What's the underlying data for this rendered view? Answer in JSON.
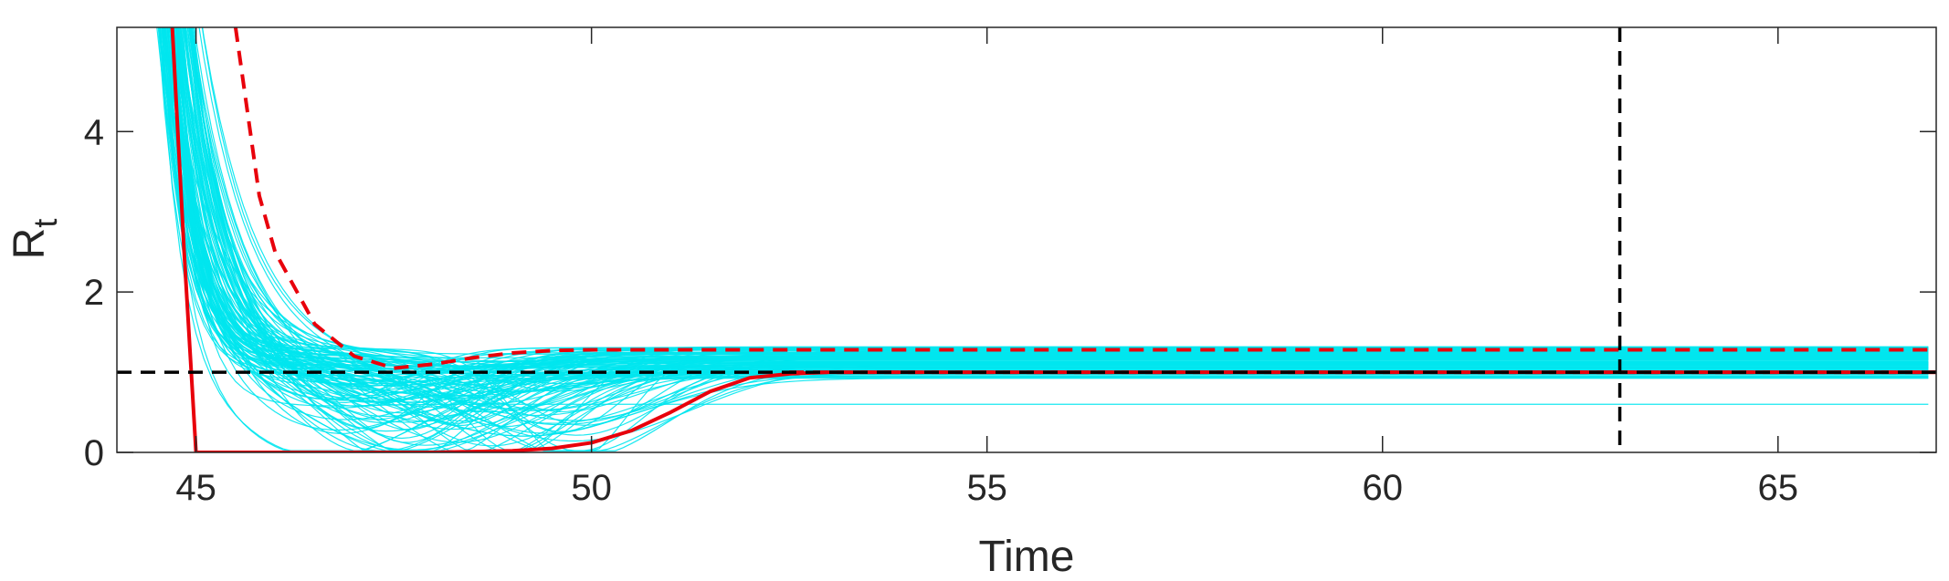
{
  "chart_data": {
    "type": "line",
    "xlabel": "Time",
    "ylabel_main": "R",
    "ylabel_sub": "t",
    "xlim": [
      44,
      67
    ],
    "ylim": [
      0,
      5.3
    ],
    "x_ticks": [
      45,
      50,
      55,
      60,
      65
    ],
    "y_ticks": [
      0,
      2,
      4
    ],
    "x_tick_labels": [
      "45",
      "50",
      "55",
      "60",
      "65"
    ],
    "y_tick_labels": [
      "0",
      "2",
      "4"
    ],
    "grid": false,
    "colors": {
      "ensemble": "#00e5ee",
      "red": "#e8000b",
      "reference": "#000000",
      "axes": "#262626"
    },
    "reference_lines": [
      {
        "orientation": "horizontal",
        "value": 1,
        "style": "dashed",
        "color": "#000000"
      },
      {
        "orientation": "vertical",
        "value": 63,
        "style": "dashed",
        "color": "#000000"
      }
    ],
    "ensemble_description": {
      "count": 120,
      "t_start": 44.5,
      "start_range": [
        5.3,
        12
      ],
      "final_range": [
        0.6,
        1.32
      ]
    },
    "series": [
      {
        "style": "solid",
        "color": "#e8000b",
        "x": [
          44.7,
          44.85,
          45.0,
          46.0,
          47.0,
          48.0,
          49.0,
          49.5,
          50.0,
          50.5,
          51.0,
          51.5,
          52.0,
          52.5,
          53.0,
          55.0,
          60.0,
          67.0
        ],
        "y": [
          5.3,
          2.5,
          0.0,
          0.0,
          0.0,
          0.0,
          0.02,
          0.05,
          0.12,
          0.27,
          0.5,
          0.76,
          0.93,
          0.98,
          1.0,
          1.0,
          1.0,
          1.0
        ]
      },
      {
        "style": "dashed",
        "color": "#e8000b",
        "x": [
          45.5,
          45.8,
          46.0,
          46.5,
          47.0,
          47.5,
          48.0,
          48.5,
          49.0,
          49.5,
          50.0,
          55.0,
          60.0,
          67.0
        ],
        "y": [
          5.3,
          3.2,
          2.5,
          1.6,
          1.2,
          1.05,
          1.1,
          1.18,
          1.24,
          1.27,
          1.28,
          1.28,
          1.28,
          1.28
        ]
      },
      {
        "style": "dashed",
        "color": "#e8000b",
        "x": [
          52.5,
          55.0,
          60.0,
          67.0
        ],
        "y": [
          1.0,
          1.0,
          1.0,
          1.0
        ]
      }
    ]
  }
}
